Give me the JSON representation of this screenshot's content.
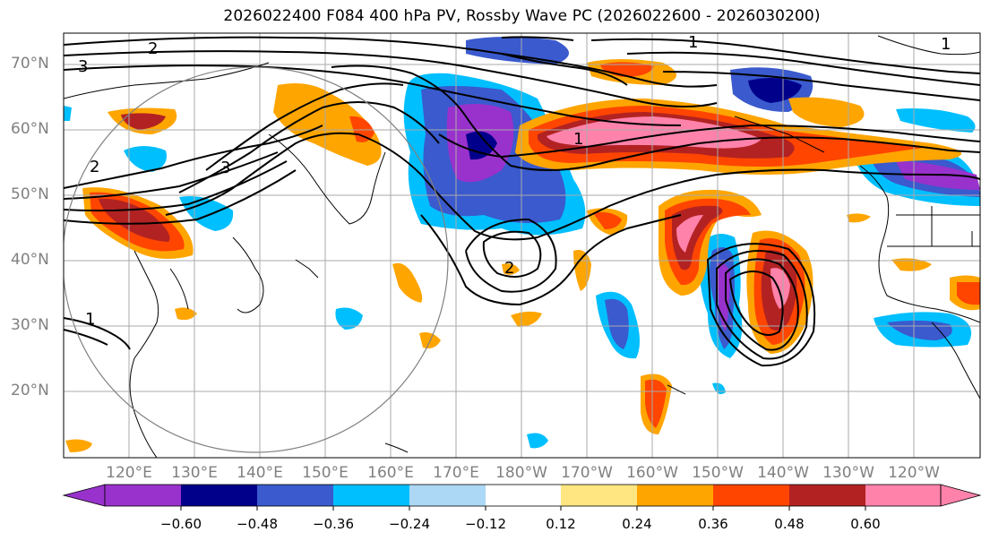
{
  "title": "2026022400 F084 400 hPa PV, Rossby Wave PC (2026022600 - 2026030200)",
  "lat_labels": [
    "70°N",
    "60°N",
    "50°N",
    "40°N",
    "30°N",
    "20°N"
  ],
  "lon_labels": [
    "120°E",
    "130°E",
    "140°E",
    "150°E",
    "160°E",
    "170°E",
    "180°W",
    "170°W",
    "160°W",
    "150°W",
    "140°W",
    "130°W",
    "120°W"
  ],
  "contour_labels": [
    "2",
    "3",
    "2",
    "3",
    "1",
    "1",
    "1",
    "2",
    "1"
  ],
  "colorbar": {
    "ticks": [
      "−0.60",
      "−0.48",
      "−0.36",
      "−0.24",
      "−0.12",
      "0.12",
      "0.24",
      "0.36",
      "0.48",
      "0.60"
    ],
    "colors": [
      "#9932cc",
      "#00008b",
      "#3a5acd",
      "#00bfff",
      "#add8f5",
      "#ffffff",
      "#ffe680",
      "#ffa500",
      "#ff4500",
      "#b22222",
      "#ff82ab"
    ],
    "extend": "both"
  },
  "region": {
    "lon_range": [
      110,
      250
    ],
    "lat_range": [
      10,
      75
    ]
  }
}
